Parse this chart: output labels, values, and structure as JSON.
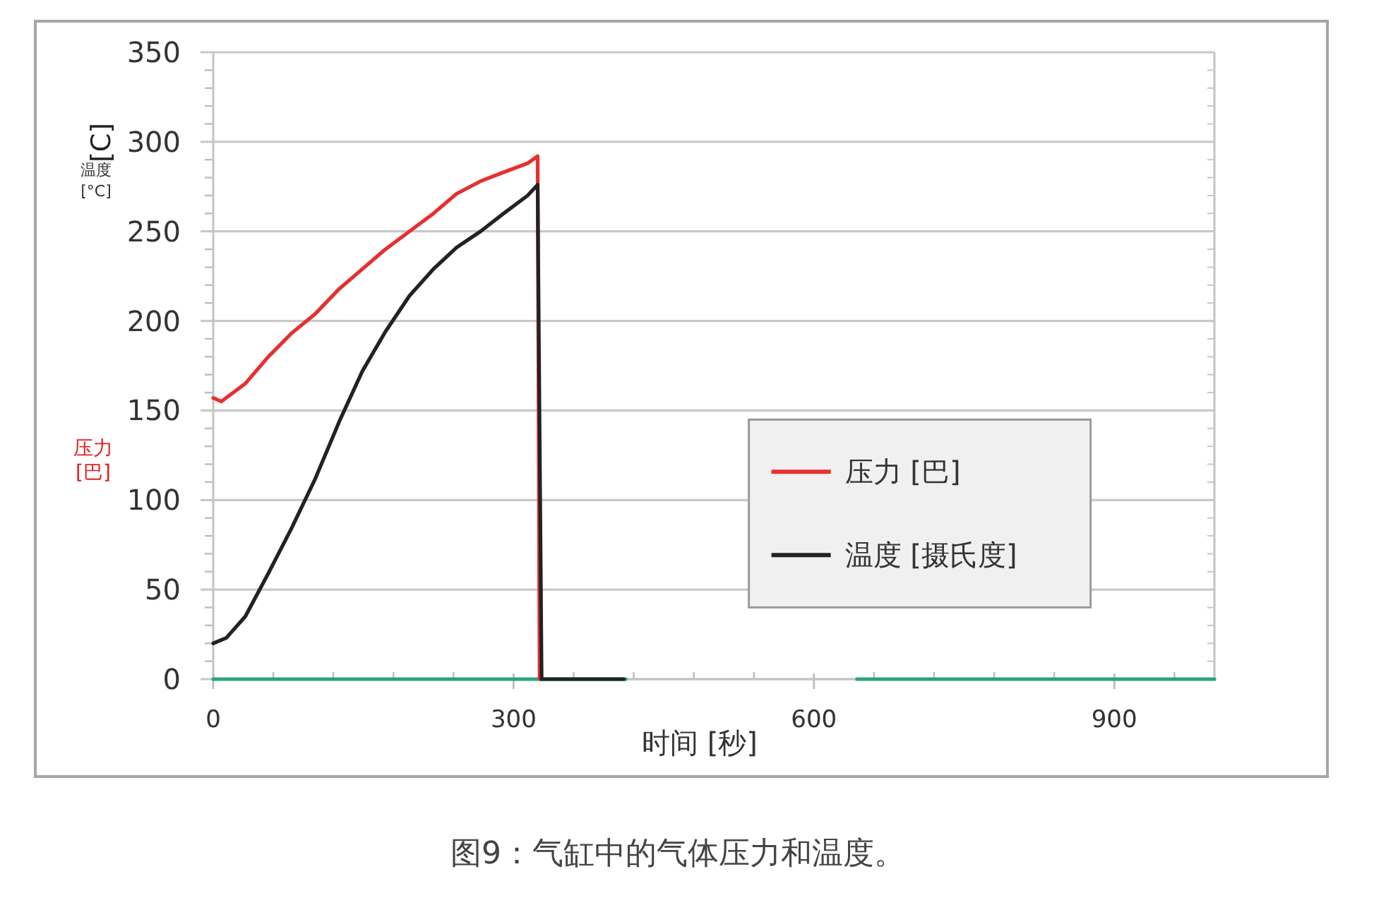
{
  "chart_data": {
    "type": "line",
    "title": "图9：气缸中的气体压力和温度。",
    "xlabel": "时间 [秒]",
    "ylabel": "温度 [°C]",
    "annotations": [
      "[C]",
      "压力 [巴]"
    ],
    "series": [
      {
        "color": "#2aa57a",
        "x": [
          0,
          412
        ],
        "values": [
          0,
          0
        ]
      },
      {
        "color": "#2aa57a",
        "x": [
          643,
          1000
        ],
        "values": [
          0,
          0
        ]
      },
      {
        "name": "压力 [巴]",
        "color": "#e53030",
        "x": [
          0,
          8,
          32,
          55,
          78,
          102,
          126,
          149,
          172,
          196,
          220,
          243,
          267,
          290,
          314,
          324,
          326
        ],
        "values": [
          157,
          155,
          165,
          180,
          193,
          204,
          218,
          229,
          240,
          250,
          260,
          271,
          278,
          283,
          288,
          292,
          0
        ]
      },
      {
        "name": "温度 [摄氏度]",
        "color": "#222222",
        "x": [
          0,
          13,
          32,
          55,
          78,
          102,
          126,
          149,
          172,
          196,
          220,
          243,
          267,
          290,
          314,
          324,
          328,
          410
        ],
        "values": [
          20,
          23,
          35,
          59,
          84,
          112,
          144,
          172,
          194,
          214,
          229,
          241,
          250,
          260,
          270,
          276,
          0,
          0
        ]
      }
    ],
    "xlim": [
      0,
      1000
    ],
    "xticks": [
      0,
      300,
      600,
      900
    ],
    "ylim": [
      0,
      350
    ],
    "yticks": [
      0,
      50,
      100,
      150,
      200,
      250,
      300,
      350
    ],
    "grid": "y",
    "legend": "right"
  }
}
